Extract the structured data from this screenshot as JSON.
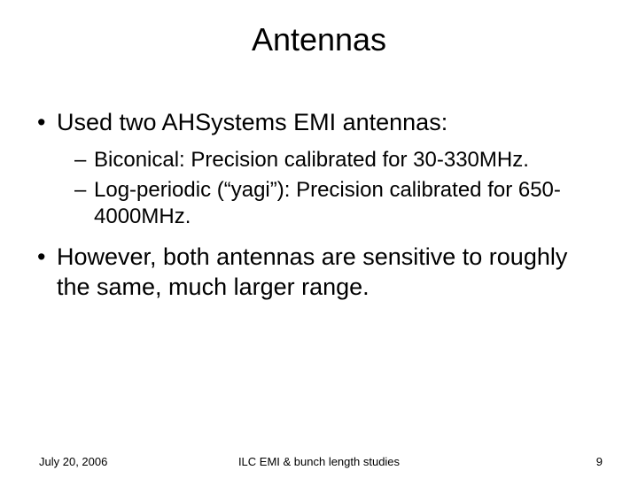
{
  "slide": {
    "title": "Antennas",
    "bullets": [
      {
        "level": 1,
        "text": "Used two AHSystems EMI antennas:"
      },
      {
        "level": 2,
        "text": "Biconical: Precision calibrated for 30-330MHz."
      },
      {
        "level": 2,
        "text": "Log-periodic (“yagi”): Precision calibrated for 650-4000MHz."
      },
      {
        "level": 1,
        "text": "However, both antennas are sensitive to roughly the same, much larger range."
      }
    ],
    "footer": {
      "date": "July 20, 2006",
      "center": "ILC EMI & bunch length studies",
      "page": "9"
    },
    "style": {
      "background_color": "#ffffff",
      "text_color": "#000000",
      "title_fontsize": 36,
      "bullet_l1_fontsize": 27,
      "bullet_l2_fontsize": 24,
      "footer_fontsize": 13,
      "font_family": "Arial"
    }
  }
}
